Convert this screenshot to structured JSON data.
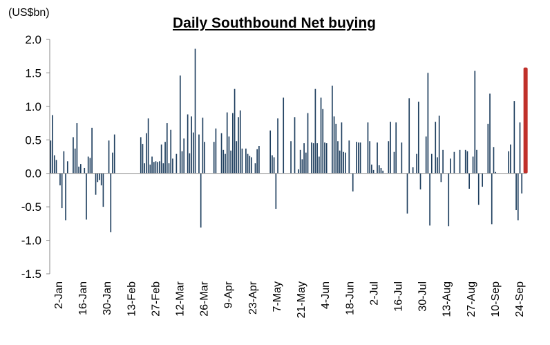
{
  "chart_data": {
    "type": "bar",
    "title": "Daily Southbound Net buying",
    "ylabel": "(US$bn)",
    "xlabel": "",
    "ylim": [
      -1.5,
      2.0
    ],
    "yticks": [
      "2.0",
      "1.5",
      "1.0",
      "0.5",
      "0.0",
      "-0.5",
      "-1.0",
      "-1.5"
    ],
    "ytick_values": [
      2.0,
      1.5,
      1.0,
      0.5,
      0.0,
      -0.5,
      -1.0,
      -1.5
    ],
    "x_tick_labels": [
      "2-Jan",
      "16-Jan",
      "30-Jan",
      "13-Feb",
      "27-Feb",
      "12-Mar",
      "26-Mar",
      "9-Apr",
      "23-Apr",
      "7-May",
      "21-May",
      "4-Jun",
      "18-Jun",
      "2-Jul",
      "16-Jul",
      "30-Jul",
      "13-Aug",
      "27-Aug",
      "10-Sep",
      "24-Sep"
    ],
    "grid": false,
    "legend": "none",
    "colors": {
      "bars": "#1f3f5f",
      "highlight": "#c0302a",
      "axis": "#888888"
    },
    "highlight_last": true,
    "values": [
      0.49,
      0.87,
      0.27,
      0.2,
      0.0,
      -0.18,
      -0.52,
      0.33,
      -0.7,
      0.18,
      0.0,
      0.0,
      0.54,
      0.37,
      0.75,
      0.1,
      0.14,
      0.0,
      0.08,
      -0.69,
      0.25,
      0.23,
      0.68,
      0.0,
      -0.32,
      -0.13,
      -0.1,
      -0.18,
      -0.5,
      0.0,
      0.0,
      0.49,
      -0.88,
      0.31,
      0.58,
      0.0,
      0.0,
      0.0,
      0.0,
      0.0,
      0.0,
      0.0,
      0.0,
      0.0,
      0.0,
      0.0,
      0.0,
      0.0,
      0.54,
      0.44,
      0.15,
      0.6,
      0.82,
      0.13,
      0.25,
      0.17,
      0.18,
      0.17,
      0.18,
      0.43,
      0.15,
      0.47,
      0.75,
      0.15,
      0.65,
      0.22,
      0.0,
      0.29,
      0.0,
      1.46,
      0.33,
      0.52,
      0.0,
      0.88,
      0.3,
      0.85,
      0.61,
      1.86,
      0.0,
      0.58,
      -0.81,
      0.83,
      0.47,
      0.0,
      0.0,
      0.0,
      0.0,
      0.47,
      0.67,
      0.0,
      0.0,
      0.6,
      0.35,
      0.29,
      0.91,
      0.55,
      0.34,
      0.9,
      1.26,
      0.48,
      0.84,
      0.94,
      0.37,
      0.0,
      0.37,
      0.29,
      0.26,
      0.24,
      0.0,
      0.15,
      0.36,
      0.41,
      0.0,
      0.0,
      0.0,
      0.0,
      0.0,
      0.64,
      0.27,
      0.24,
      -0.53,
      0.82,
      0.0,
      0.0,
      1.13,
      0.0,
      0.0,
      0.0,
      0.48,
      0.0,
      0.84,
      0.0,
      0.06,
      0.35,
      0.21,
      0.45,
      0.31,
      0.9,
      0.0,
      0.46,
      0.45,
      1.26,
      0.45,
      0.25,
      1.13,
      0.96,
      0.46,
      0.45,
      0.0,
      0.0,
      1.31,
      0.85,
      0.74,
      0.48,
      0.34,
      0.76,
      0.32,
      0.31,
      0.0,
      0.49,
      0.0,
      -0.27,
      0.0,
      0.47,
      0.46,
      0.46,
      0.0,
      0.0,
      0.0,
      0.76,
      0.48,
      0.13,
      0.05,
      0.0,
      0.46,
      0.12,
      0.08,
      0.04,
      0.0,
      0.0,
      0.48,
      0.77,
      0.0,
      0.32,
      0.76,
      0.0,
      0.0,
      0.46,
      0.0,
      0.0,
      -0.6,
      1.12,
      0.0,
      0.09,
      0.0,
      0.29,
      1.07,
      -0.24,
      0.0,
      0.0,
      0.55,
      1.5,
      -0.78,
      0.29,
      0.0,
      0.77,
      0.24,
      0.86,
      -0.13,
      0.35,
      0.0,
      0.0,
      -0.79,
      0.22,
      0.0,
      0.32,
      0.0,
      0.0,
      0.35,
      0.0,
      0.0,
      0.35,
      0.33,
      -0.23,
      0.0,
      0.25,
      1.53,
      0.35,
      -0.47,
      0.0,
      -0.2,
      0.0,
      0.0,
      0.74,
      1.19,
      -0.76,
      0.39,
      0.02,
      0.0,
      0.0,
      0.0,
      0.0,
      0.0,
      0.0,
      0.33,
      0.43,
      0.0,
      1.08,
      -0.55,
      -0.7,
      0.76,
      -0.3,
      0.0,
      1.58
    ]
  }
}
